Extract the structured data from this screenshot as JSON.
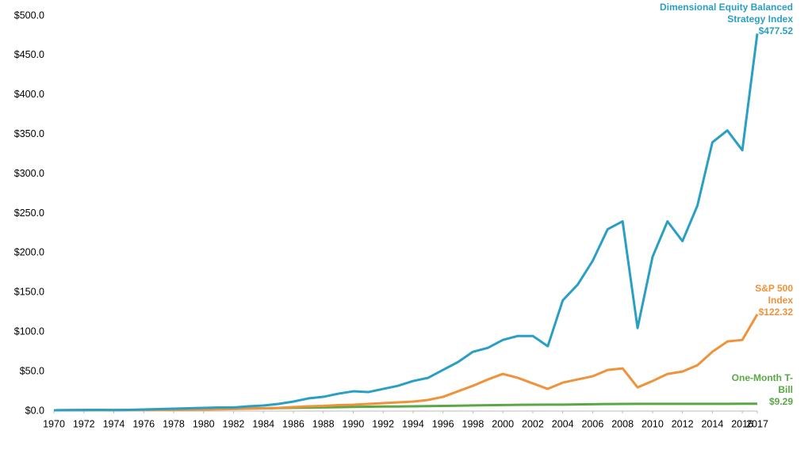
{
  "chart_data": {
    "type": "line",
    "x": [
      1970,
      1971,
      1972,
      1973,
      1974,
      1975,
      1976,
      1977,
      1978,
      1979,
      1980,
      1981,
      1982,
      1983,
      1984,
      1985,
      1986,
      1987,
      1988,
      1989,
      1990,
      1991,
      1992,
      1993,
      1994,
      1995,
      1996,
      1997,
      1998,
      1999,
      2000,
      2001,
      2002,
      2003,
      2004,
      2005,
      2006,
      2007,
      2008,
      2009,
      2010,
      2011,
      2012,
      2013,
      2014,
      2015,
      2016,
      2017
    ],
    "series": [
      {
        "name": "Dimensional Equity Balanced Strategy Index",
        "color": "#2a9fc4",
        "end_label": "$477.52",
        "values": [
          1,
          1.2,
          1.4,
          1.5,
          1.3,
          1.5,
          2,
          2.5,
          3,
          3.5,
          4,
          4.5,
          4.5,
          6,
          7,
          9,
          12,
          16,
          18,
          22,
          25,
          24,
          28,
          32,
          38,
          42,
          52,
          62,
          75,
          80,
          90,
          95,
          95,
          82,
          140,
          160,
          190,
          230,
          240,
          105,
          195,
          240,
          215,
          260,
          340,
          355,
          330,
          477.52
        ]
      },
      {
        "name": "S&P 500 Index",
        "color": "#f0923a",
        "end_label": "$122.32",
        "values": [
          1,
          1.1,
          1.2,
          1.2,
          1,
          1.2,
          1.4,
          1.5,
          1.6,
          1.8,
          2,
          2.3,
          2.6,
          3,
          3.5,
          4,
          5,
          6,
          6.5,
          7.5,
          8,
          9,
          10,
          11,
          12,
          14,
          18,
          25,
          32,
          40,
          47,
          42,
          35,
          28,
          36,
          40,
          44,
          52,
          54,
          30,
          38,
          47,
          50,
          58,
          75,
          88,
          90,
          122.32
        ]
      },
      {
        "name": "One-Month T-Bill",
        "color": "#5aa845",
        "end_label": "$9.29",
        "values": [
          1,
          1.1,
          1.15,
          1.2,
          1.3,
          1.5,
          1.6,
          1.7,
          1.8,
          2,
          2.3,
          2.6,
          2.9,
          3.2,
          3.5,
          3.8,
          4.1,
          4.3,
          4.6,
          4.9,
          5.3,
          5.5,
          5.7,
          5.8,
          6,
          6.3,
          6.5,
          6.8,
          7.1,
          7.4,
          7.6,
          7.9,
          8,
          8.1,
          8.2,
          8.4,
          8.6,
          8.9,
          9,
          9.1,
          9.1,
          9.1,
          9.15,
          9.15,
          9.2,
          9.2,
          9.25,
          9.29
        ]
      }
    ],
    "xlim": [
      1970,
      2017
    ],
    "xticks": [
      1970,
      1972,
      1974,
      1976,
      1978,
      1980,
      1982,
      1984,
      1986,
      1988,
      1990,
      1992,
      1994,
      1996,
      1998,
      2000,
      2002,
      2004,
      2006,
      2008,
      2010,
      2012,
      2014,
      2016,
      2017
    ],
    "ylim": [
      0,
      500
    ],
    "yticks": [
      {
        "value": 0,
        "label": "$0.0"
      },
      {
        "value": 50,
        "label": "$50.0"
      },
      {
        "value": 100,
        "label": "$100.0"
      },
      {
        "value": 150,
        "label": "$150.0"
      },
      {
        "value": 200,
        "label": "$200.0"
      },
      {
        "value": 250,
        "label": "$250.0"
      },
      {
        "value": 300,
        "label": "$300.0"
      },
      {
        "value": 350,
        "label": "$350.0"
      },
      {
        "value": 400,
        "label": "$400.0"
      },
      {
        "value": 450,
        "label": "$450.0"
      },
      {
        "value": 500,
        "label": "$500.0"
      }
    ],
    "grid": false
  }
}
